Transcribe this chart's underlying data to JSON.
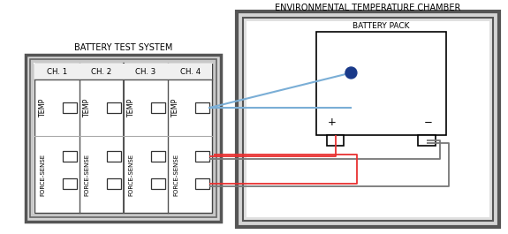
{
  "white": "#ffffff",
  "black": "#000000",
  "light_gray": "#d4d4d4",
  "mid_gray": "#b8b8b8",
  "dark_gray": "#888888",
  "blue_line": "#7aaed6",
  "red_line": "#e83030",
  "blue_dot": "#1a3a8a",
  "title_etc": "ENVIRONMENTAL TEMPERATURE CHAMBER",
  "title_bts": "BATTERY TEST SYSTEM",
  "title_bp": "BATTERY PACK",
  "channels": [
    "CH. 1",
    "CH. 2",
    "CH. 3",
    "CH. 4"
  ],
  "label_temp": "TEMP",
  "label_force": "FORCE-SENSE",
  "fig_w": 5.75,
  "fig_h": 2.65,
  "dpi": 100
}
